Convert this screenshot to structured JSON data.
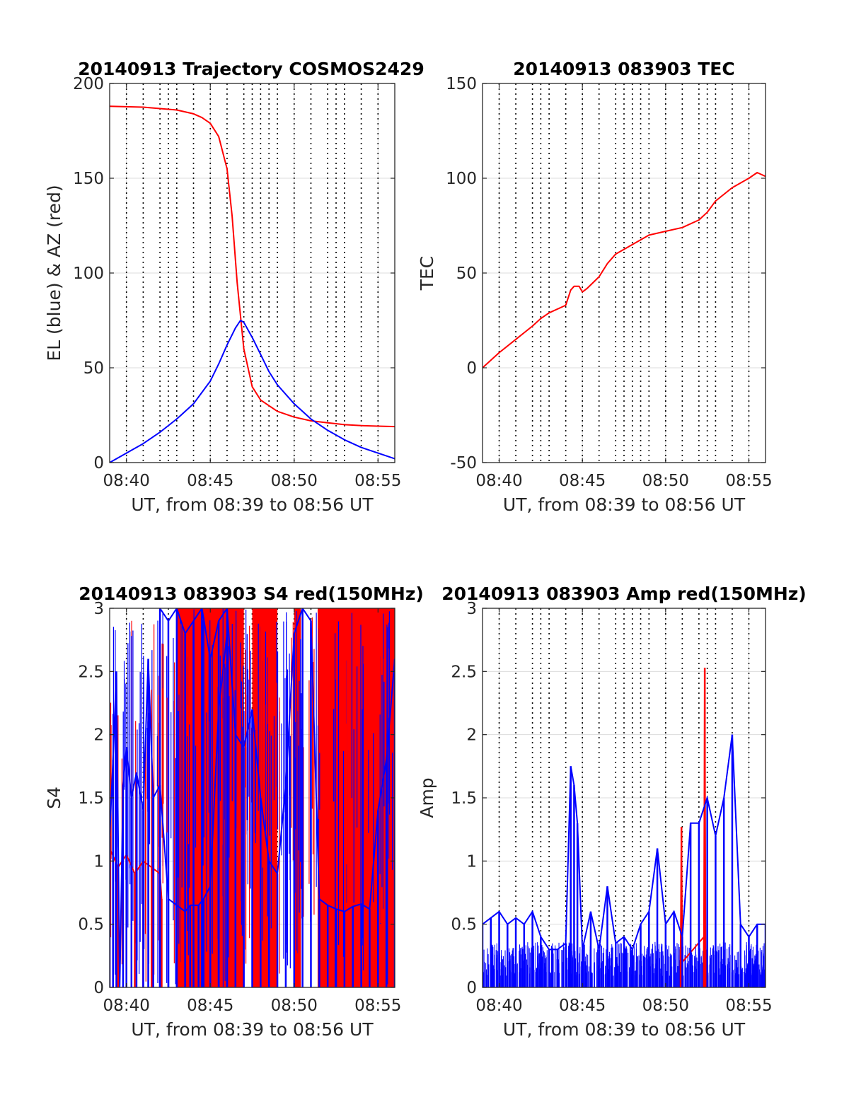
{
  "chart_data": [
    {
      "id": "traj",
      "type": "line",
      "title": "20140913 Trajectory COSMOS2429",
      "xlabel": "UT, from 08:39 to 08:56 UT",
      "ylabel": "EL (blue) & AZ (red)",
      "xlim": [
        0,
        17
      ],
      "ylim": [
        0,
        200
      ],
      "x_tick_values": [
        1,
        6,
        11,
        16
      ],
      "x_tick_labels": [
        "08:40",
        "08:45",
        "08:50",
        "08:55"
      ],
      "y_ticks": [
        0,
        50,
        100,
        150,
        200
      ],
      "vertical_markers": [
        1,
        2,
        3,
        3.5,
        4,
        5,
        6,
        7,
        8,
        8.5,
        9,
        9.5,
        10,
        11,
        12,
        13,
        13.5,
        14,
        15,
        16
      ],
      "grid": true,
      "series": [
        {
          "color": "#ff0000",
          "x": [
            0,
            2,
            4,
            5,
            5.5,
            6,
            6.5,
            7,
            7.3,
            7.6,
            8,
            8.5,
            9,
            10,
            11,
            12,
            13,
            14,
            15,
            16,
            17
          ],
          "values": [
            188,
            187.5,
            186,
            184,
            182,
            179,
            172,
            155,
            130,
            95,
            60,
            40,
            33,
            27,
            24,
            22,
            21,
            20,
            19.5,
            19.2,
            19
          ]
        },
        {
          "color": "#0000ff",
          "x": [
            0,
            1,
            2,
            3,
            4,
            5,
            6,
            6.5,
            7,
            7.5,
            7.8,
            8,
            8.5,
            9,
            9.5,
            10,
            11,
            12,
            13,
            14,
            15,
            16,
            17
          ],
          "values": [
            0,
            5,
            10,
            16,
            23,
            31,
            43,
            52,
            62,
            71,
            75,
            74,
            66,
            57,
            48,
            41,
            31,
            23,
            17,
            12,
            8,
            5,
            2
          ]
        }
      ]
    },
    {
      "id": "tec",
      "type": "line",
      "title": "20140913 083903 TEC",
      "xlabel": "UT, from 08:39 to 08:56 UT",
      "ylabel": "TEC",
      "xlim": [
        0,
        17
      ],
      "ylim": [
        -50,
        150
      ],
      "x_tick_values": [
        1,
        6,
        11,
        16
      ],
      "x_tick_labels": [
        "08:40",
        "08:45",
        "08:50",
        "08:55"
      ],
      "y_ticks": [
        -50,
        0,
        50,
        100,
        150
      ],
      "vertical_markers": [
        1,
        2,
        3,
        3.5,
        4,
        5,
        6,
        7,
        8,
        8.5,
        9,
        9.5,
        10,
        11,
        12,
        13,
        13.5,
        14,
        15,
        16
      ],
      "grid": true,
      "series": [
        {
          "color": "#ff0000",
          "x": [
            0,
            1,
            2,
            3,
            3.5,
            4,
            5,
            5.3,
            5.5,
            5.8,
            6,
            6.3,
            7,
            7.5,
            8,
            9,
            10,
            11,
            12,
            13,
            13.5,
            14,
            15,
            16,
            16.5,
            17
          ],
          "values": [
            0,
            8,
            15,
            22,
            26,
            29,
            33,
            41,
            43,
            43,
            40,
            42,
            48,
            55,
            60,
            65,
            70,
            72,
            74,
            78,
            82,
            88,
            95,
            100,
            103,
            101
          ]
        }
      ]
    },
    {
      "id": "s4",
      "type": "line",
      "title": "20140913 083903 S4 red(150MHz)",
      "xlabel": "UT, from 08:39 to 08:56 UT",
      "ylabel": "S4",
      "xlim": [
        0,
        17
      ],
      "ylim": [
        0,
        3
      ],
      "x_tick_values": [
        1,
        6,
        11,
        16
      ],
      "x_tick_labels": [
        "08:40",
        "08:45",
        "08:50",
        "08:55"
      ],
      "y_ticks": [
        0,
        0.5,
        1,
        1.5,
        2,
        2.5,
        3
      ],
      "y_tick_labels": [
        "0",
        "0.5",
        "1",
        "1.5",
        "2",
        "2.5",
        "3"
      ],
      "vertical_markers": [
        1,
        2,
        3,
        3.5,
        4,
        5,
        6,
        7,
        8,
        8.5,
        9,
        9.5,
        10,
        11,
        12,
        13,
        13.5,
        14,
        15,
        16
      ],
      "grid": true,
      "series": [
        {
          "color": "#ff0000",
          "x": [
            0,
            0.5,
            1,
            1.5,
            2,
            2.5,
            3,
            3.1
          ],
          "values": [
            1.1,
            0.95,
            1.05,
            0.9,
            1.0,
            0.95,
            0.9,
            0.7
          ]
        },
        {
          "color": "#ff0000",
          "x": [
            4,
            5,
            5.5,
            6,
            6.5,
            7,
            7.5,
            8
          ],
          "values": [
            0.0,
            0.0,
            0.0,
            0.0,
            0.0,
            0.0,
            0.0,
            0.0
          ]
        },
        {
          "color": "#0000ff",
          "x": [
            3,
            3.5,
            4,
            4.5,
            4.8,
            5.3,
            5.6,
            6,
            6.5,
            7
          ],
          "values": [
            1.6,
            0.7,
            0.65,
            0.6,
            0.65,
            0.65,
            0.7,
            0.8,
            2.2,
            2.8
          ]
        },
        {
          "color": "#ff0000",
          "x": [
            12.5,
            13,
            13.5,
            14,
            14.5,
            15,
            15.5,
            16,
            16.5,
            17
          ],
          "values": [
            0.0,
            0.0,
            0.0,
            0.0,
            0.0,
            0.0,
            0.0,
            0.0,
            0.0,
            0.0
          ]
        },
        {
          "color": "#0000ff",
          "x": [
            12.5,
            13,
            13.5,
            14,
            14.5,
            15,
            15.5,
            16,
            16.5,
            17
          ],
          "values": [
            0.7,
            0.65,
            0.62,
            0.6,
            0.64,
            0.66,
            0.62,
            1.4,
            1.8,
            2.6
          ]
        },
        {
          "color": "#0000ff",
          "x": [
            0,
            0.2,
            0.4,
            0.6,
            0.8,
            1,
            1.3,
            1.6,
            2,
            2.3,
            2.6,
            3
          ],
          "values": [
            1.2,
            1.8,
            2.5,
            0.0,
            1.6,
            1.9,
            1.5,
            1.7,
            1.4,
            2.6,
            1.5,
            1.6
          ]
        },
        {
          "color": "#0000ff",
          "x": [
            3,
            3.5,
            4,
            4.5,
            5,
            5.5,
            6,
            6.5,
            7,
            7.5,
            8,
            8.5,
            9,
            9.5,
            10,
            10.5,
            11,
            11.5,
            12,
            12.5
          ],
          "values": [
            3.0,
            2.9,
            3.0,
            2.8,
            2.9,
            3.0,
            2.6,
            2.9,
            3.0,
            2.0,
            1.9,
            2.2,
            1.5,
            1.0,
            0.9,
            1.6,
            2.8,
            3.0,
            2.9,
            0.7
          ]
        }
      ],
      "red_bands": [
        [
          4,
          8
        ],
        [
          8.5,
          10
        ],
        [
          11,
          11.4
        ],
        [
          12.4,
          17
        ]
      ]
    },
    {
      "id": "amp",
      "type": "line",
      "title": "20140913 083903 Amp red(150MHz)",
      "xlabel": "UT, from 08:39 to 08:56 UT",
      "ylabel": "Amp",
      "xlim": [
        0,
        17
      ],
      "ylim": [
        0,
        3
      ],
      "x_tick_values": [
        1,
        6,
        11,
        16
      ],
      "x_tick_labels": [
        "08:40",
        "08:45",
        "08:50",
        "08:55"
      ],
      "y_ticks": [
        0,
        0.5,
        1,
        1.5,
        2,
        2.5,
        3
      ],
      "y_tick_labels": [
        "0",
        "0.5",
        "1",
        "1.5",
        "2",
        "2.5",
        "3"
      ],
      "vertical_markers": [
        1,
        2,
        3,
        3.5,
        4,
        5,
        6,
        7,
        8,
        8.5,
        9,
        9.5,
        10,
        11,
        12,
        13,
        13.5,
        14,
        15,
        16
      ],
      "grid": true,
      "series": [
        {
          "color": "#ff0000",
          "x": [
            11.9,
            11.95,
            12.0,
            13.3,
            13.35,
            13.4
          ],
          "values": [
            0.3,
            1.27,
            0.2,
            0.4,
            2.53,
            0.3
          ]
        },
        {
          "color": "#0000ff",
          "x": [
            0,
            0.5,
            1,
            1.5,
            2,
            2.5,
            3,
            3.5,
            4,
            4.5,
            5,
            5.3,
            5.5,
            5.7,
            6,
            6.5,
            7,
            7.5,
            8,
            8.5,
            9,
            9.5,
            10,
            10.5,
            11,
            11.5,
            12,
            12.5,
            13,
            13.5,
            14,
            14.5,
            15,
            15.5,
            16,
            16.5,
            17
          ],
          "values": [
            0.5,
            0.55,
            0.6,
            0.5,
            0.55,
            0.5,
            0.6,
            0.4,
            0.3,
            0.3,
            0.35,
            1.75,
            1.6,
            1.3,
            0.3,
            0.6,
            0.3,
            0.8,
            0.35,
            0.4,
            0.3,
            0.5,
            0.6,
            1.1,
            0.5,
            0.6,
            0.4,
            1.3,
            1.3,
            1.5,
            1.2,
            1.5,
            2.0,
            0.5,
            0.4,
            0.5,
            0.5
          ]
        }
      ],
      "noise_floor": 0.3
    }
  ]
}
